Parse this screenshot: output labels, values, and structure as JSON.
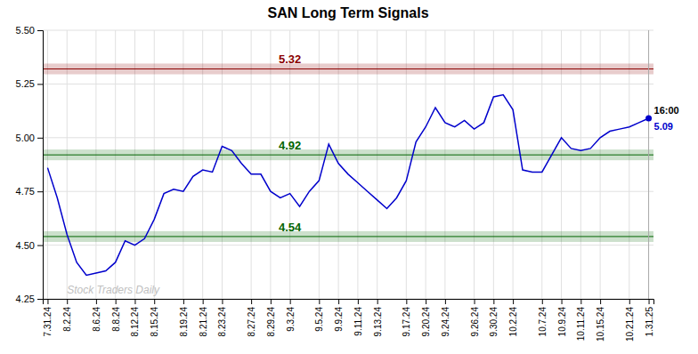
{
  "chart_data": {
    "type": "line",
    "title": "SAN Long Term Signals",
    "categories": [
      "7.31.24",
      null,
      "8.2.24",
      null,
      null,
      "8.6.24",
      null,
      "8.8.24",
      null,
      "8.12.24",
      null,
      "8.15.24",
      null,
      null,
      "8.19.24",
      null,
      "8.21.24",
      null,
      "8.23.24",
      null,
      null,
      "8.27.24",
      null,
      "8.29.24",
      null,
      "9.3.24",
      null,
      null,
      "9.5.24",
      null,
      "9.9.24",
      null,
      "9.11.24",
      null,
      "9.13.24",
      null,
      null,
      "9.17.24",
      null,
      "9.20.24",
      null,
      "9.24.24",
      null,
      null,
      "9.26.24",
      null,
      "9.30.24",
      null,
      "10.2.24",
      null,
      null,
      "10.7.24",
      null,
      "10.9.24",
      null,
      "10.11.24",
      null,
      "10.15.24",
      null,
      null,
      "10.21.24",
      null,
      "1.31.25"
    ],
    "values": [
      4.86,
      4.72,
      4.55,
      4.42,
      4.36,
      4.37,
      4.38,
      4.42,
      4.52,
      4.5,
      4.53,
      4.62,
      4.74,
      4.76,
      4.75,
      4.82,
      4.85,
      4.84,
      4.96,
      4.94,
      4.88,
      4.83,
      4.83,
      4.75,
      4.72,
      4.74,
      4.68,
      4.75,
      4.8,
      4.97,
      4.88,
      4.83,
      4.79,
      4.75,
      4.71,
      4.67,
      4.72,
      4.8,
      4.98,
      5.05,
      5.14,
      5.07,
      5.05,
      5.08,
      5.04,
      5.07,
      5.19,
      5.2,
      5.13,
      4.85,
      4.84,
      4.84,
      4.92,
      5.0,
      4.95,
      4.94,
      4.95,
      5.0,
      5.03,
      5.04,
      5.05,
      5.07,
      5.09
    ],
    "color": "#0000cc",
    "ylim": [
      4.25,
      5.5
    ],
    "yticks": [
      4.25,
      {
        "value": 4.5,
        "label": "4.50"
      },
      4.75,
      {
        "value": 5.0,
        "label": "5.00"
      },
      5.25,
      {
        "value": 5.5,
        "label": "5.50"
      }
    ],
    "grid": true,
    "annotations": [
      {
        "text": "5.32",
        "y": 5.32,
        "color": "#8b0000"
      },
      {
        "text": "4.92",
        "y": 4.92,
        "color": "#006400"
      },
      {
        "text": "4.54",
        "y": 4.54,
        "color": "#006400"
      },
      {
        "text": "16:00",
        "x": "1.31.25"
      },
      {
        "text": "5.09",
        "x": "1.31.25",
        "color": "#0000cc"
      },
      {
        "text": "Stock Traders Daily"
      }
    ]
  }
}
